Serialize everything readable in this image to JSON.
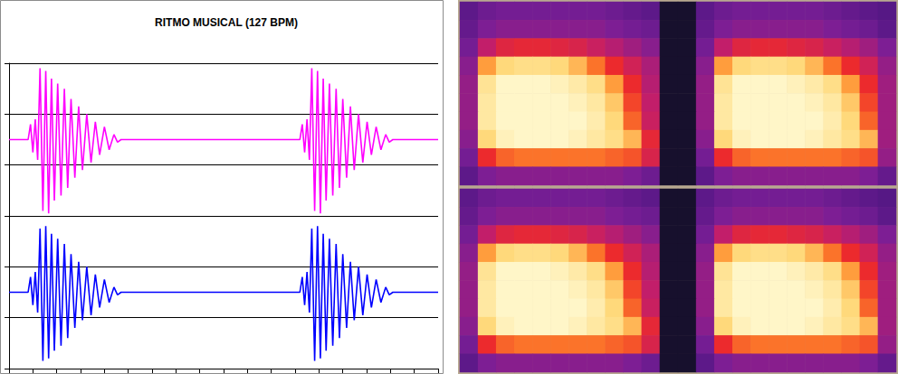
{
  "chart_data": [
    {
      "type": "line",
      "title": "RITMO MUSICAL (127 BPM)",
      "x": [
        0,
        0.8,
        0.9,
        1.0,
        1.1,
        1.2,
        1.3,
        1.42,
        1.54,
        1.66,
        1.78,
        1.9,
        2.04,
        2.18,
        2.32,
        2.46,
        2.6,
        2.76,
        2.92,
        3.08,
        3.26,
        3.44,
        3.62,
        3.8,
        4.0,
        4.2,
        4.4,
        4.55,
        4.7,
        12.2,
        12.3,
        12.4,
        12.5,
        12.6,
        12.7,
        12.82,
        12.94,
        13.06,
        13.18,
        13.3,
        13.44,
        13.58,
        13.72,
        13.86,
        14.0,
        14.16,
        14.32,
        14.48,
        14.66,
        14.84,
        15.02,
        15.2,
        15.4,
        15.6,
        15.8,
        15.95,
        16.1,
        18
      ],
      "series": [
        {
          "color": "#ff00ff",
          "values": [
            1.5,
            1.5,
            1.8,
            1.25,
            1.9,
            1.1,
            2.9,
            0.1,
            2.85,
            0.05,
            2.7,
            0.3,
            2.6,
            0.4,
            2.5,
            0.55,
            2.3,
            0.75,
            2.15,
            0.9,
            2.0,
            1.05,
            1.85,
            1.2,
            1.75,
            1.3,
            1.6,
            1.45,
            1.5,
            1.5,
            1.8,
            1.25,
            1.9,
            1.1,
            2.9,
            0.1,
            2.85,
            0.05,
            2.7,
            0.3,
            2.6,
            0.4,
            2.5,
            0.55,
            2.3,
            0.75,
            2.15,
            0.9,
            2.0,
            1.05,
            1.85,
            1.2,
            1.75,
            1.3,
            1.6,
            1.45,
            1.5,
            1.5
          ]
        },
        {
          "color": "#0000ff",
          "values": [
            -1.5,
            -1.5,
            -1.2,
            -1.75,
            -1.1,
            -1.9,
            -0.25,
            -2.85,
            -0.2,
            -2.8,
            -0.35,
            -2.65,
            -0.45,
            -2.55,
            -0.55,
            -2.4,
            -0.75,
            -2.2,
            -0.9,
            -2.05,
            -1.0,
            -1.95,
            -1.15,
            -1.8,
            -1.25,
            -1.7,
            -1.4,
            -1.55,
            -1.5,
            -1.5,
            -1.2,
            -1.75,
            -1.1,
            -1.9,
            -0.25,
            -2.85,
            -0.2,
            -2.8,
            -0.35,
            -2.65,
            -0.45,
            -2.55,
            -0.55,
            -2.4,
            -0.75,
            -2.2,
            -0.9,
            -2.05,
            -1.0,
            -1.95,
            -1.15,
            -1.8,
            -1.25,
            -1.7,
            -1.4,
            -1.55,
            -1.5,
            -1.5
          ]
        }
      ],
      "xlim": [
        0,
        18
      ],
      "xticks": [
        0,
        1,
        2,
        3,
        4,
        5,
        6,
        7,
        8,
        9,
        10,
        11,
        12,
        13,
        14,
        15,
        16,
        17,
        18
      ],
      "ylim": [
        -3,
        3
      ],
      "yticks": [
        -3,
        -2,
        -1,
        0,
        1,
        2,
        3
      ],
      "grid": true,
      "tick_labels": false
    },
    {
      "type": "heatmap",
      "tick_labels": false,
      "value_range": [
        0,
        100
      ],
      "panels": [
        {
          "cells": [
            [
              30,
              34,
              36,
              36,
              36,
              36,
              36,
              36,
              34,
              32,
              30,
              8,
              8,
              30,
              34,
              36,
              36,
              36,
              36,
              36,
              34,
              32,
              30,
              28
            ],
            [
              32,
              38,
              40,
              40,
              40,
              40,
              40,
              40,
              38,
              36,
              34,
              8,
              8,
              32,
              38,
              40,
              40,
              40,
              40,
              40,
              38,
              36,
              34,
              30
            ],
            [
              36,
              50,
              58,
              60,
              60,
              58,
              56,
              52,
              48,
              44,
              40,
              8,
              8,
              36,
              50,
              58,
              60,
              60,
              58,
              56,
              52,
              48,
              44,
              38
            ],
            [
              40,
              78,
              88,
              90,
              90,
              88,
              82,
              72,
              62,
              54,
              46,
              8,
              8,
              40,
              78,
              88,
              90,
              90,
              88,
              82,
              72,
              62,
              54,
              42
            ],
            [
              42,
              92,
              100,
              100,
              100,
              98,
              95,
              90,
              78,
              62,
              48,
              8,
              8,
              42,
              92,
              100,
              100,
              100,
              98,
              95,
              90,
              78,
              62,
              44
            ],
            [
              42,
              94,
              100,
              100,
              100,
              100,
              98,
              94,
              85,
              66,
              50,
              8,
              8,
              42,
              94,
              100,
              100,
              100,
              100,
              98,
              94,
              85,
              66,
              44
            ],
            [
              42,
              94,
              100,
              100,
              100,
              100,
              100,
              96,
              88,
              70,
              52,
              8,
              8,
              42,
              94,
              100,
              100,
              100,
              100,
              100,
              96,
              88,
              70,
              44
            ],
            [
              40,
              88,
              98,
              100,
              100,
              100,
              98,
              94,
              90,
              82,
              60,
              8,
              8,
              40,
              88,
              98,
              100,
              100,
              100,
              98,
              94,
              90,
              82,
              44
            ],
            [
              36,
              62,
              70,
              72,
              72,
              72,
              72,
              72,
              70,
              68,
              56,
              8,
              8,
              36,
              62,
              70,
              72,
              72,
              72,
              72,
              72,
              70,
              68,
              42
            ],
            [
              30,
              38,
              40,
              40,
              40,
              40,
              40,
              40,
              40,
              38,
              34,
              8,
              8,
              30,
              38,
              40,
              40,
              40,
              40,
              40,
              40,
              40,
              38,
              32
            ]
          ]
        },
        {
          "cells": [
            [
              30,
              34,
              36,
              36,
              36,
              36,
              36,
              36,
              34,
              32,
              30,
              8,
              8,
              30,
              34,
              36,
              36,
              36,
              36,
              36,
              34,
              32,
              30,
              28
            ],
            [
              32,
              38,
              40,
              40,
              40,
              40,
              40,
              40,
              38,
              36,
              34,
              8,
              8,
              32,
              38,
              40,
              40,
              40,
              40,
              40,
              38,
              36,
              34,
              30
            ],
            [
              36,
              50,
              58,
              60,
              60,
              58,
              56,
              52,
              48,
              44,
              40,
              8,
              8,
              36,
              50,
              58,
              60,
              60,
              58,
              56,
              52,
              48,
              44,
              38
            ],
            [
              40,
              78,
              88,
              90,
              90,
              88,
              82,
              72,
              62,
              54,
              46,
              8,
              8,
              40,
              78,
              88,
              90,
              90,
              88,
              82,
              72,
              62,
              54,
              42
            ],
            [
              42,
              92,
              100,
              100,
              100,
              98,
              95,
              90,
              78,
              62,
              48,
              8,
              8,
              42,
              92,
              100,
              100,
              100,
              98,
              95,
              90,
              78,
              62,
              44
            ],
            [
              42,
              94,
              100,
              100,
              100,
              100,
              98,
              94,
              85,
              66,
              50,
              8,
              8,
              42,
              94,
              100,
              100,
              100,
              100,
              98,
              94,
              85,
              66,
              44
            ],
            [
              42,
              94,
              100,
              100,
              100,
              100,
              100,
              96,
              88,
              70,
              52,
              8,
              8,
              42,
              94,
              100,
              100,
              100,
              100,
              100,
              96,
              88,
              70,
              44
            ],
            [
              40,
              88,
              98,
              100,
              100,
              100,
              98,
              94,
              90,
              82,
              60,
              8,
              8,
              40,
              88,
              98,
              100,
              100,
              100,
              98,
              94,
              90,
              82,
              44
            ],
            [
              36,
              62,
              70,
              72,
              72,
              72,
              72,
              72,
              70,
              68,
              56,
              8,
              8,
              36,
              62,
              70,
              72,
              72,
              72,
              72,
              72,
              70,
              68,
              42
            ],
            [
              30,
              38,
              40,
              40,
              40,
              40,
              40,
              40,
              40,
              38,
              34,
              8,
              8,
              30,
              38,
              40,
              40,
              40,
              40,
              40,
              40,
              40,
              38,
              32
            ]
          ]
        }
      ]
    }
  ]
}
